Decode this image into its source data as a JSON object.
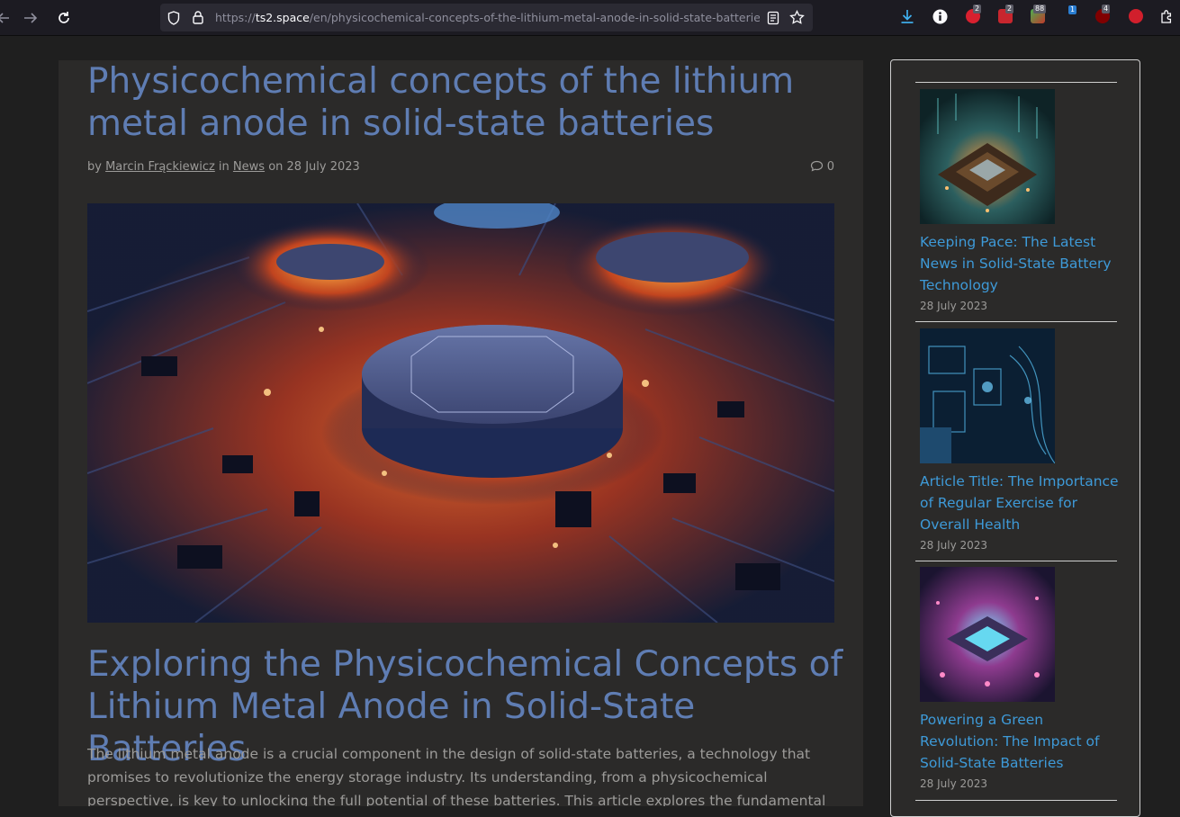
{
  "browser": {
    "url_scheme": "https://",
    "url_host": "ts2.space",
    "url_path": "/en/physicochemical-concepts-of-the-lithium-metal-anode-in-solid-state-batteries/",
    "extensions": [
      {
        "name": "download-icon",
        "badge": ""
      },
      {
        "name": "info-extension-icon",
        "badge": ""
      },
      {
        "name": "adblock-extension-icon",
        "badge": "2"
      },
      {
        "name": "mail-extension-icon",
        "badge": "2"
      },
      {
        "name": "grid-extension-icon",
        "badge": "88"
      },
      {
        "name": "blue-extension-icon",
        "badge": "1"
      },
      {
        "name": "ublock-extension-icon",
        "badge": "4"
      },
      {
        "name": "b-extension-icon",
        "badge": ""
      }
    ]
  },
  "article": {
    "title": "Physicochemical concepts of the lithium metal anode in solid-state batteries",
    "by": "by ",
    "author": "Marcin Frąckiewicz",
    "in": " in ",
    "category": "News",
    "on": " on 28 July 2023",
    "comment_count": "0",
    "section_title": "Exploring the Physicochemical Concepts of Lithium Metal Anode in Solid-State Batteries",
    "intro": "The lithium metal anode is a crucial component in the design of solid-state batteries, a technology that promises to revolutionize the energy storage industry. Its understanding, from a physicochemical perspective, is key to unlocking the full potential of these batteries. This article explores the fundamental physicochemical"
  },
  "sidebar": {
    "posts": [
      {
        "title": "Keeping Pace: The Latest News in Solid-State Battery Technology",
        "date": "28 July 2023"
      },
      {
        "title": "Article Title: The Importance of Regular Exercise for Overall Health",
        "date": "28 July 2023"
      },
      {
        "title": "Powering a Green Revolution: The Impact of Solid-State Batteries",
        "date": "28 July 2023"
      }
    ]
  }
}
